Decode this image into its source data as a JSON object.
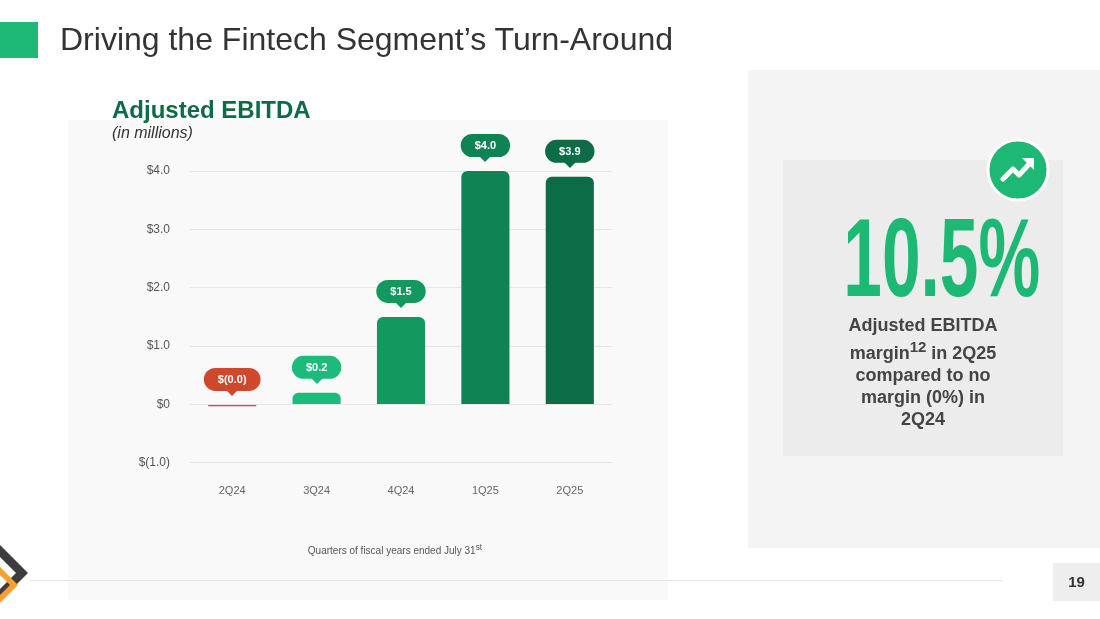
{
  "chart_data": {
    "type": "bar",
    "title": "Adjusted EBITDA",
    "subtitle": "(in millions)",
    "xlabel": "Quarters of fiscal years ended July 31$^{st}$",
    "categories": [
      "2Q24",
      "3Q24",
      "4Q24",
      "1Q25",
      "2Q25"
    ],
    "values": [
      -0.03,
      0.2,
      1.5,
      4.0,
      3.9
    ],
    "colors": [
      "#d0482c",
      "#1dbb7b",
      "#13995f",
      "#0f8354",
      "#0c6c46"
    ],
    "value_labels": [
      "$(0.0)",
      "$0.2",
      "$1.5",
      "$4.0",
      "$3.9"
    ],
    "ylim": [
      -1,
      4
    ],
    "yticks": [
      {
        "value": -1,
        "label": "$(1.0)"
      },
      {
        "value": 0,
        "label": "$0"
      },
      {
        "value": 1,
        "label": "$1.0"
      },
      {
        "value": 2,
        "label": "$2.0"
      },
      {
        "value": 3,
        "label": "$3.0"
      },
      {
        "value": 4,
        "label": "$4.0"
      }
    ],
    "grid": "y",
    "annotations": [
      "Driving the Fintech Segment’s Turn-Around",
      "10.5%",
      "Adjusted EBITDA margin$^{12}$ in 2Q25 compared to no margin (0%) in 2Q24",
      "19"
    ]
  }
}
